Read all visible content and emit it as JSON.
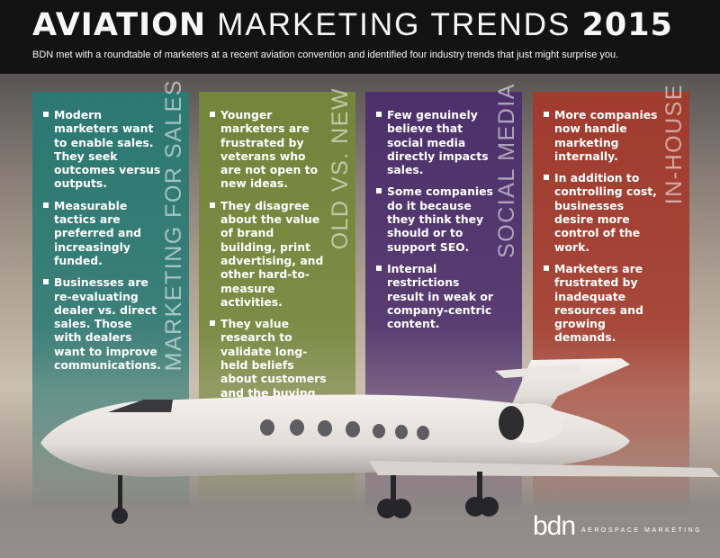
{
  "header": {
    "title": [
      "AVIATION",
      "MARKETING TRENDS",
      "2015"
    ],
    "subtitle": "BDN met with a roundtable of marketers at a recent aviation convention and identified four industry trends that just might surprise you."
  },
  "columns": [
    {
      "title": "MARKETING FOR SALES",
      "bullets": [
        "Modern marketers want to enable sales. They seek outcomes versus outputs.",
        "Measurable tactics are preferred and increasingly funded.",
        "Businesses are re-evaluating dealer vs. direct sales. Those with dealers want to improve communications."
      ]
    },
    {
      "title": "OLD VS. NEW",
      "bullets": [
        "Younger marketers are frustrated by veterans who are not open to new ideas.",
        "They disagree about the value of brand building, print advertising, and other hard-to-measure activities.",
        "They value research to validate long-held beliefs about customers and the buying process."
      ]
    },
    {
      "title": "SOCIAL MEDIA",
      "bullets": [
        "Few genuinely believe that social media directly impacts sales.",
        "Some companies do it because they think they should or to support SEO.",
        "Internal restrictions result in weak or company-centric content."
      ]
    },
    {
      "title": "IN-HOUSE",
      "bullets": [
        "More companies now handle marketing internally.",
        "In addition to controlling cost, businesses desire more control of the work.",
        "Marketers are frustrated by inadequate resources and growing demands."
      ]
    }
  ],
  "footer": {
    "logo": "bdn",
    "tagline": "AEROSPACE MARKETING"
  }
}
